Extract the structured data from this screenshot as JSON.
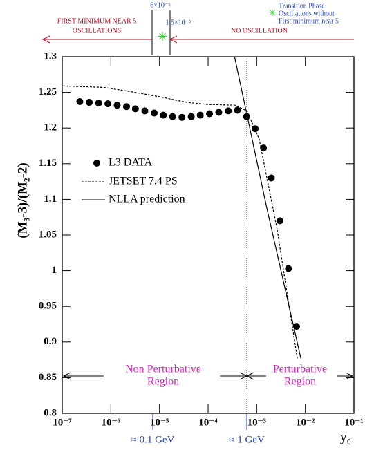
{
  "chart_data": {
    "type": "line",
    "ylabel": "(M₃-3)/(M₂-2)",
    "xlabel": "y₀",
    "xscale": "log",
    "xlim": [
      1e-07,
      0.1
    ],
    "ylim": [
      0.8,
      1.3
    ],
    "xticks": [
      {
        "value": 1e-07,
        "label": "10⁻⁷"
      },
      {
        "value": 1e-06,
        "label": "10⁻⁶"
      },
      {
        "value": 1e-05,
        "label": "10⁻⁵"
      },
      {
        "value": 0.0001,
        "label": "10⁻⁴"
      },
      {
        "value": 0.001,
        "label": "10⁻³"
      },
      {
        "value": 0.01,
        "label": "10⁻²"
      },
      {
        "value": 0.1,
        "label": "10⁻¹"
      }
    ],
    "yticks": [
      0.8,
      0.85,
      0.9,
      0.95,
      1,
      1.05,
      1.1,
      1.15,
      1.2,
      1.25,
      1.3
    ],
    "series": [
      {
        "name": "L3 DATA",
        "color": "#000000",
        "style": "points",
        "x": [
          2.3e-07,
          3.6e-07,
          5.6e-07,
          8.7e-07,
          1.35e-06,
          2.1e-06,
          3.2e-06,
          5e-06,
          7.8e-06,
          1.2e-05,
          1.86e-05,
          2.9e-05,
          4.5e-05,
          6.9e-05,
          0.000107,
          0.000166,
          0.00026,
          0.0004,
          0.00062,
          0.00093,
          0.00138,
          0.002,
          0.003,
          0.0045,
          0.0066
        ],
        "values": [
          1.237,
          1.236,
          1.235,
          1.234,
          1.232,
          1.23,
          1.227,
          1.224,
          1.221,
          1.218,
          1.216,
          1.215,
          1.216,
          1.218,
          1.22,
          1.222,
          1.224,
          1.225,
          1.216,
          1.199,
          1.172,
          1.13,
          1.07,
          1.003,
          0.922
        ]
      },
      {
        "name": "JETSET 7.4 PS",
        "color": "#000000",
        "style": "dashed",
        "x": [
          1e-07,
          7.1e-07,
          2.6e-06,
          9.8e-06,
          3.6e-05,
          9.8e-05,
          0.00036,
          0.00063,
          0.00112,
          0.0026,
          0.0069
        ],
        "values": [
          1.259,
          1.257,
          1.251,
          1.244,
          1.236,
          1.233,
          1.232,
          1.224,
          1.185,
          1.06,
          0.876
        ]
      },
      {
        "name": "NLLA prediction",
        "color": "#000000",
        "style": "solid",
        "x": [
          0.00035,
          0.0016,
          0.0081
        ],
        "values": [
          1.3,
          1.089,
          0.877
        ]
      }
    ],
    "annotations": {
      "left_header": [
        "FIRST MINIMUM NEAR 5",
        "OSCILLATIONS"
      ],
      "right_header": "NO OSCILLATION",
      "bound_low": "6×10⁻⁶",
      "bound_high": "1.5×10⁻⁵",
      "transition": [
        "Transition Phase",
        "Oscillations without",
        "First minimum near 5"
      ],
      "non_perturbative": [
        "Non Perturbative",
        "Region"
      ],
      "perturbative": [
        "Perturbative",
        "Region"
      ],
      "scale_low": "≈ 0.1 GeV",
      "scale_high": "≈ 1 GeV"
    }
  }
}
